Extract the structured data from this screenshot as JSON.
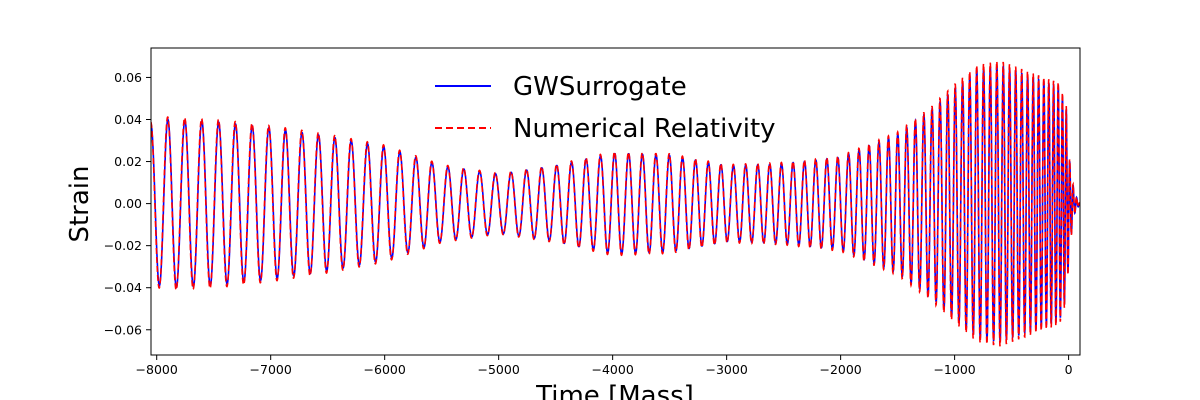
{
  "chart_data": {
    "type": "line",
    "title": "",
    "xlabel": "Time [Mass]",
    "ylabel": "Strain",
    "xlim": [
      -8050,
      100
    ],
    "ylim": [
      -0.072,
      0.074
    ],
    "xticks": [
      -8000,
      -7000,
      -6000,
      -5000,
      -4000,
      -3000,
      -2000,
      -1000,
      0
    ],
    "xtick_labels": [
      "−8000",
      "−7000",
      "−6000",
      "−5000",
      "−4000",
      "−3000",
      "−2000",
      "−1000",
      "0"
    ],
    "yticks": [
      -0.06,
      -0.04,
      -0.02,
      0.0,
      0.02,
      0.04,
      0.06
    ],
    "ytick_labels": [
      "−0.06",
      "−0.04",
      "−0.02",
      "0.00",
      "0.02",
      "0.04",
      "0.06"
    ],
    "grid": false,
    "legend_position": "top-center",
    "series": [
      {
        "name": "GWSurrogate",
        "color": "#0000ff",
        "style": "solid"
      },
      {
        "name": "Numerical Relativity",
        "color": "#ff0000",
        "style": "dashed"
      }
    ],
    "envelope": {
      "t": [
        -8050,
        -7900,
        -7500,
        -7000,
        -6500,
        -6000,
        -5500,
        -5000,
        -4500,
        -4000,
        -3500,
        -3000,
        -2500,
        -2000,
        -1500,
        -1200,
        -1000,
        -800,
        -600,
        -400,
        -200,
        -80,
        -20,
        10,
        50,
        100
      ],
      "amplitude": [
        0.038,
        0.04,
        0.039,
        0.036,
        0.032,
        0.027,
        0.018,
        0.014,
        0.018,
        0.024,
        0.023,
        0.018,
        0.019,
        0.022,
        0.033,
        0.045,
        0.055,
        0.064,
        0.066,
        0.062,
        0.058,
        0.056,
        0.045,
        0.02,
        0.005,
        0.0
      ]
    },
    "period": {
      "t": [
        -8050,
        -5000,
        -2000,
        -1000,
        -400,
        -100,
        0,
        100
      ],
      "value": [
        150,
        138,
        95,
        65,
        52,
        40,
        30,
        30
      ]
    }
  }
}
